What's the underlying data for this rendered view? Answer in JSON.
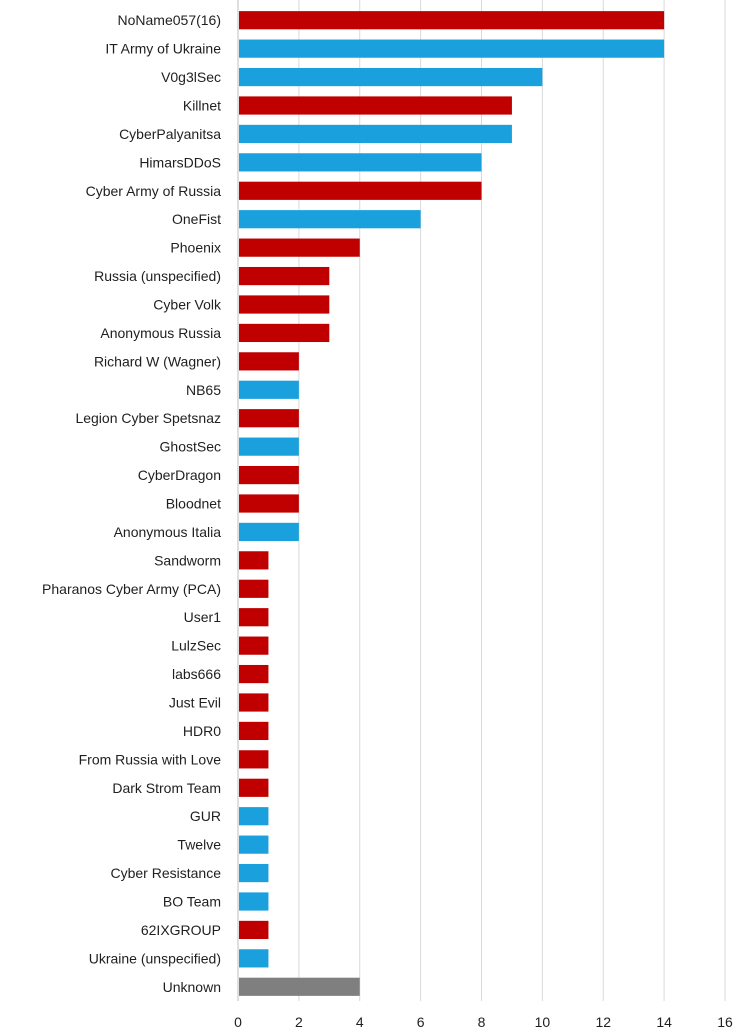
{
  "chart_data": {
    "type": "bar",
    "orientation": "horizontal",
    "title": "",
    "xlabel": "",
    "ylabel": "",
    "xlim": [
      0,
      16
    ],
    "x_ticks": [
      0,
      2,
      4,
      6,
      8,
      10,
      12,
      14,
      16
    ],
    "grid": "vertical",
    "legend": "none",
    "colors": {
      "russia": "#c00000",
      "ukraine": "#1aa0dd",
      "unknown": "#7f7f7f",
      "gridline": "#d9d9d9",
      "axis": "#bfbfbf"
    },
    "categories": [
      "NoName057(16)",
      "IT Army of Ukraine",
      "V0g3lSec",
      "Killnet",
      "CyberPalyanitsa",
      "HimarsDDoS",
      "Cyber Army of Russia",
      "OneFist",
      "Phoenix",
      "Russia (unspecified)",
      "Cyber Volk",
      "Anonymous Russia",
      "Richard W (Wagner)",
      "NB65",
      "Legion Cyber Spetsnaz",
      "GhostSec",
      "CyberDragon",
      "Bloodnet",
      "Anonymous Italia",
      "Sandworm",
      "Pharanos Cyber Army (PCA)",
      "User1",
      "LulzSec",
      "labs666",
      "Just Evil",
      "HDR0",
      "From Russia with Love",
      "Dark Strom Team",
      "GUR",
      "Twelve",
      "Cyber Resistance",
      "BO Team",
      "62IXGROUP",
      "Ukraine (unspecified)",
      "Unknown"
    ],
    "values": [
      14,
      14,
      10,
      9,
      9,
      8,
      8,
      6,
      4,
      3,
      3,
      3,
      2,
      2,
      2,
      2,
      2,
      2,
      2,
      1,
      1,
      1,
      1,
      1,
      1,
      1,
      1,
      1,
      1,
      1,
      1,
      1,
      1,
      1,
      4
    ],
    "color_groups": [
      "russia",
      "ukraine",
      "ukraine",
      "russia",
      "ukraine",
      "ukraine",
      "russia",
      "ukraine",
      "russia",
      "russia",
      "russia",
      "russia",
      "russia",
      "ukraine",
      "russia",
      "ukraine",
      "russia",
      "russia",
      "ukraine",
      "russia",
      "russia",
      "russia",
      "russia",
      "russia",
      "russia",
      "russia",
      "russia",
      "russia",
      "ukraine",
      "ukraine",
      "ukraine",
      "ukraine",
      "russia",
      "ukraine",
      "unknown"
    ]
  }
}
